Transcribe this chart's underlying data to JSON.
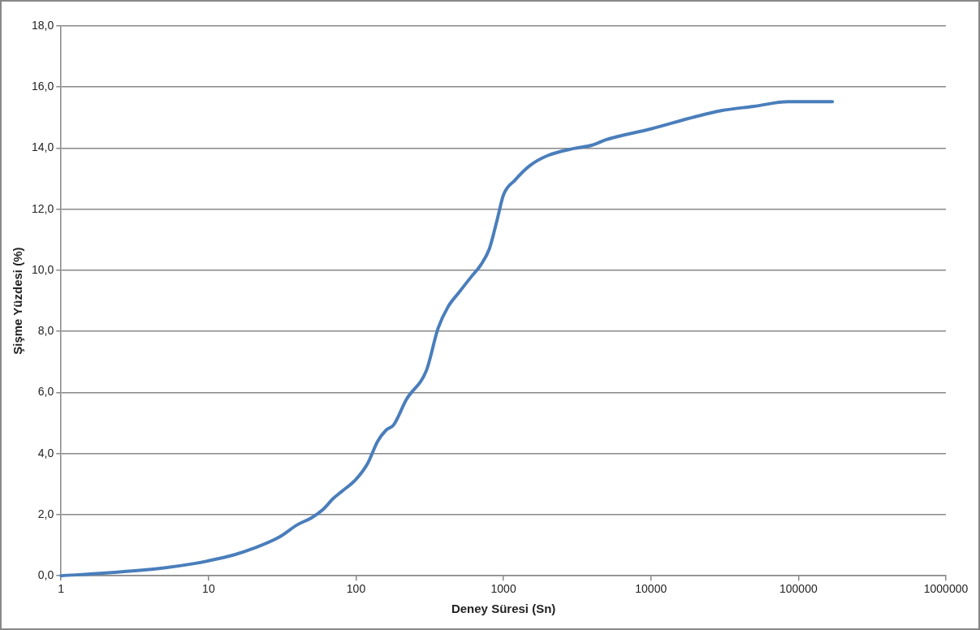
{
  "chart_data": {
    "type": "line",
    "xlabel": "Deney Süresi (Sn)",
    "ylabel": "Şişme Yüzdesi (%)",
    "log": "x",
    "grid": "y",
    "legend": false,
    "marker": "none",
    "line_style": "solid",
    "xlim": [
      1,
      1000000
    ],
    "xticks": [
      1,
      10,
      100,
      1000,
      10000,
      100000,
      1000000
    ],
    "ylim": [
      0,
      18
    ],
    "yticks": [
      {
        "value": 0,
        "label": "0,0"
      },
      {
        "value": 2,
        "label": "2,0"
      },
      {
        "value": 4,
        "label": "4,0"
      },
      {
        "value": 6,
        "label": "6,0"
      },
      {
        "value": 8,
        "label": "8,0"
      },
      {
        "value": 10,
        "label": "10,0"
      },
      {
        "value": 12,
        "label": "12,0"
      },
      {
        "value": 14,
        "label": "14,0"
      },
      {
        "value": 16,
        "label": "16,0"
      },
      {
        "value": 18,
        "label": "18,0"
      }
    ],
    "series": [
      {
        "color": "#4a7ebb",
        "x": [
          1,
          2,
          5,
          8,
          10,
          15,
          20,
          30,
          40,
          50,
          60,
          70,
          80,
          100,
          120,
          140,
          160,
          180,
          220,
          300,
          360,
          420,
          500,
          600,
          700,
          800,
          900,
          1000,
          1200,
          1500,
          2000,
          3000,
          4000,
          5000,
          10000,
          20000,
          30000,
          50000,
          85000,
          170000
        ],
        "values": [
          0.0,
          0.09,
          0.26,
          0.4,
          0.49,
          0.69,
          0.89,
          1.26,
          1.67,
          1.9,
          2.18,
          2.53,
          2.76,
          3.16,
          3.68,
          4.4,
          4.77,
          4.94,
          5.78,
          6.72,
          8.1,
          8.8,
          9.28,
          9.77,
          10.17,
          10.69,
          11.6,
          12.47,
          12.96,
          13.42,
          13.76,
          13.99,
          14.1,
          14.28,
          14.63,
          15.03,
          15.23,
          15.37,
          15.52,
          15.52
        ]
      }
    ]
  }
}
